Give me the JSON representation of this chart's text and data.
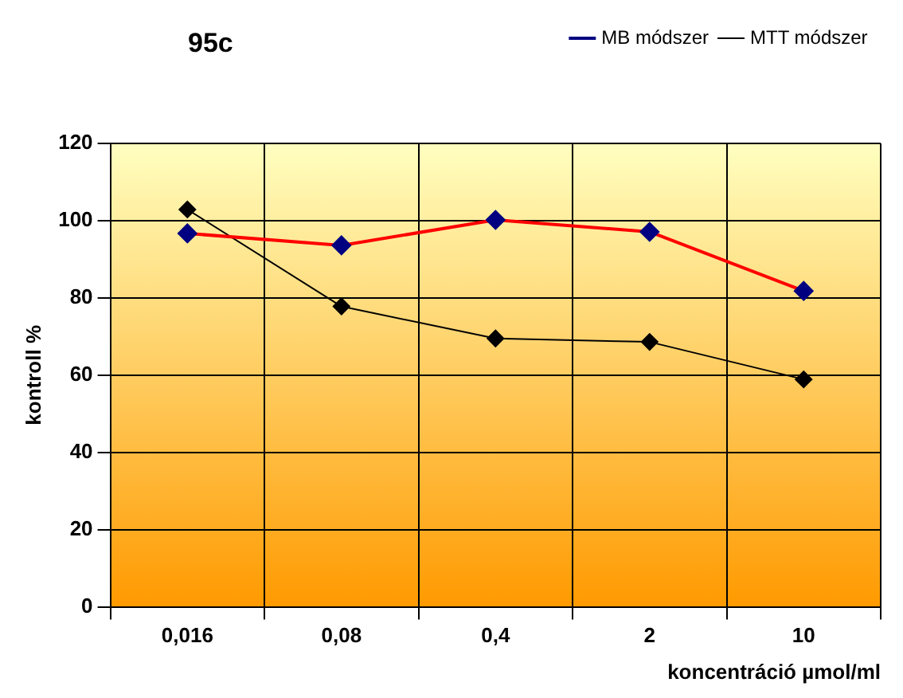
{
  "chart_data": {
    "type": "line",
    "title": "95c",
    "xlabel": "koncentráció µmol/ml",
    "ylabel": "kontroll %",
    "categories": [
      "0,016",
      "0,08",
      "0,4",
      "2",
      "10"
    ],
    "series": [
      {
        "name": "MB módszer",
        "color": "#ff0000",
        "values": [
          96.7,
          93.6,
          100.2,
          97.1,
          81.8
        ]
      },
      {
        "name": "MTT módszer",
        "color": "#000000",
        "values": [
          102.9,
          77.8,
          69.5,
          68.6,
          58.9
        ]
      }
    ],
    "ylim": [
      0,
      120
    ],
    "yticks": [
      0,
      20,
      40,
      60,
      80,
      100,
      120
    ],
    "grid": true,
    "legend": "top right",
    "marker": "diamond"
  }
}
